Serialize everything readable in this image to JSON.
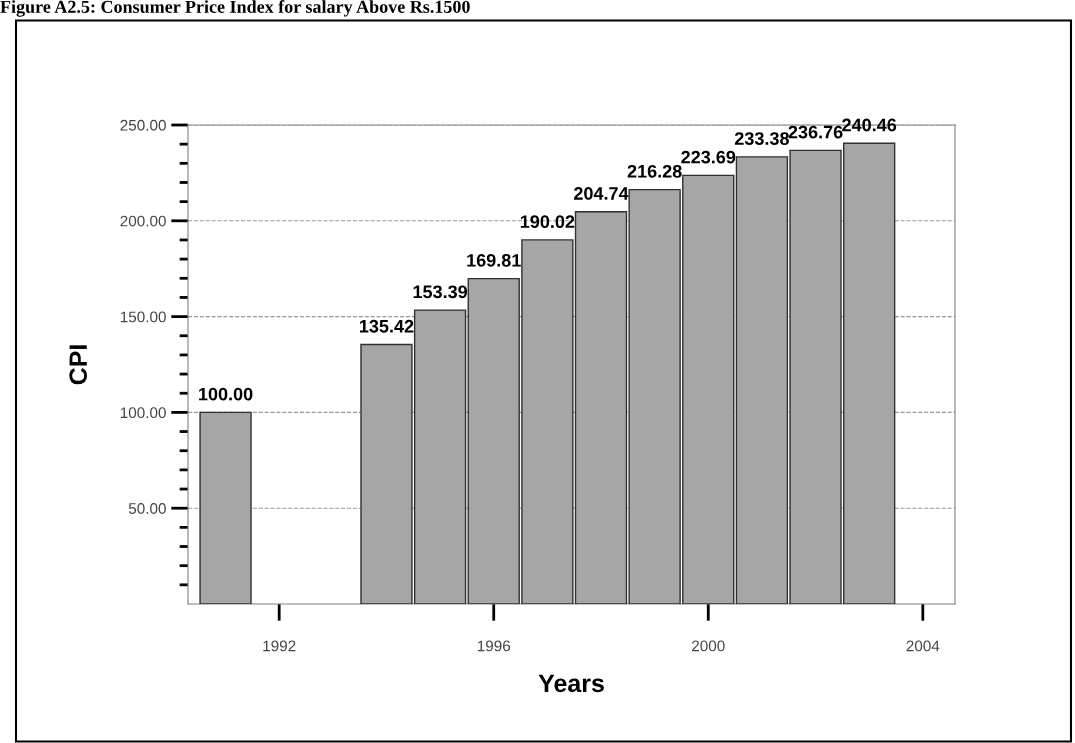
{
  "chart_data": {
    "type": "bar",
    "title": "Figure A2.5: Consumer Price Index for salary Above Rs.1500",
    "xlabel": "Years",
    "ylabel": "CPI",
    "x": [
      1991,
      1994,
      1995,
      1996,
      1997,
      1998,
      1999,
      2000,
      2001,
      2002,
      2003
    ],
    "values": [
      100.0,
      135.42,
      153.39,
      169.81,
      190.02,
      204.74,
      216.28,
      223.69,
      233.38,
      236.76,
      240.46
    ],
    "value_labels": [
      "100.00",
      "135.42",
      "153.39",
      "169.81",
      "190.02",
      "204.74",
      "216.28",
      "223.69",
      "233.38",
      "236.76",
      "240.46"
    ],
    "color": "#a6a6a6",
    "grid": "y",
    "xlim": [
      1990.3,
      2004.6
    ],
    "xticks": [
      1992,
      1996,
      2000,
      2004
    ],
    "ylim": [
      0,
      250
    ],
    "yticks": [
      {
        "value": 10,
        "label": null
      },
      {
        "value": 20,
        "label": null
      },
      {
        "value": 30,
        "label": null
      },
      {
        "value": 40,
        "label": null
      },
      {
        "value": 50,
        "label": "50.00"
      },
      {
        "value": 60,
        "label": null
      },
      {
        "value": 70,
        "label": null
      },
      {
        "value": 80,
        "label": null
      },
      {
        "value": 90,
        "label": null
      },
      {
        "value": 100,
        "label": "100.00"
      },
      {
        "value": 110,
        "label": null
      },
      {
        "value": 120,
        "label": null
      },
      {
        "value": 130,
        "label": null
      },
      {
        "value": 140,
        "label": null
      },
      {
        "value": 150,
        "label": "150.00"
      },
      {
        "value": 160,
        "label": null
      },
      {
        "value": 170,
        "label": null
      },
      {
        "value": 180,
        "label": null
      },
      {
        "value": 190,
        "label": null
      },
      {
        "value": 200,
        "label": "200.00"
      },
      {
        "value": 210,
        "label": null
      },
      {
        "value": 220,
        "label": null
      },
      {
        "value": 230,
        "label": null
      },
      {
        "value": 240,
        "label": null
      },
      {
        "value": 250,
        "label": "250.00"
      }
    ]
  }
}
